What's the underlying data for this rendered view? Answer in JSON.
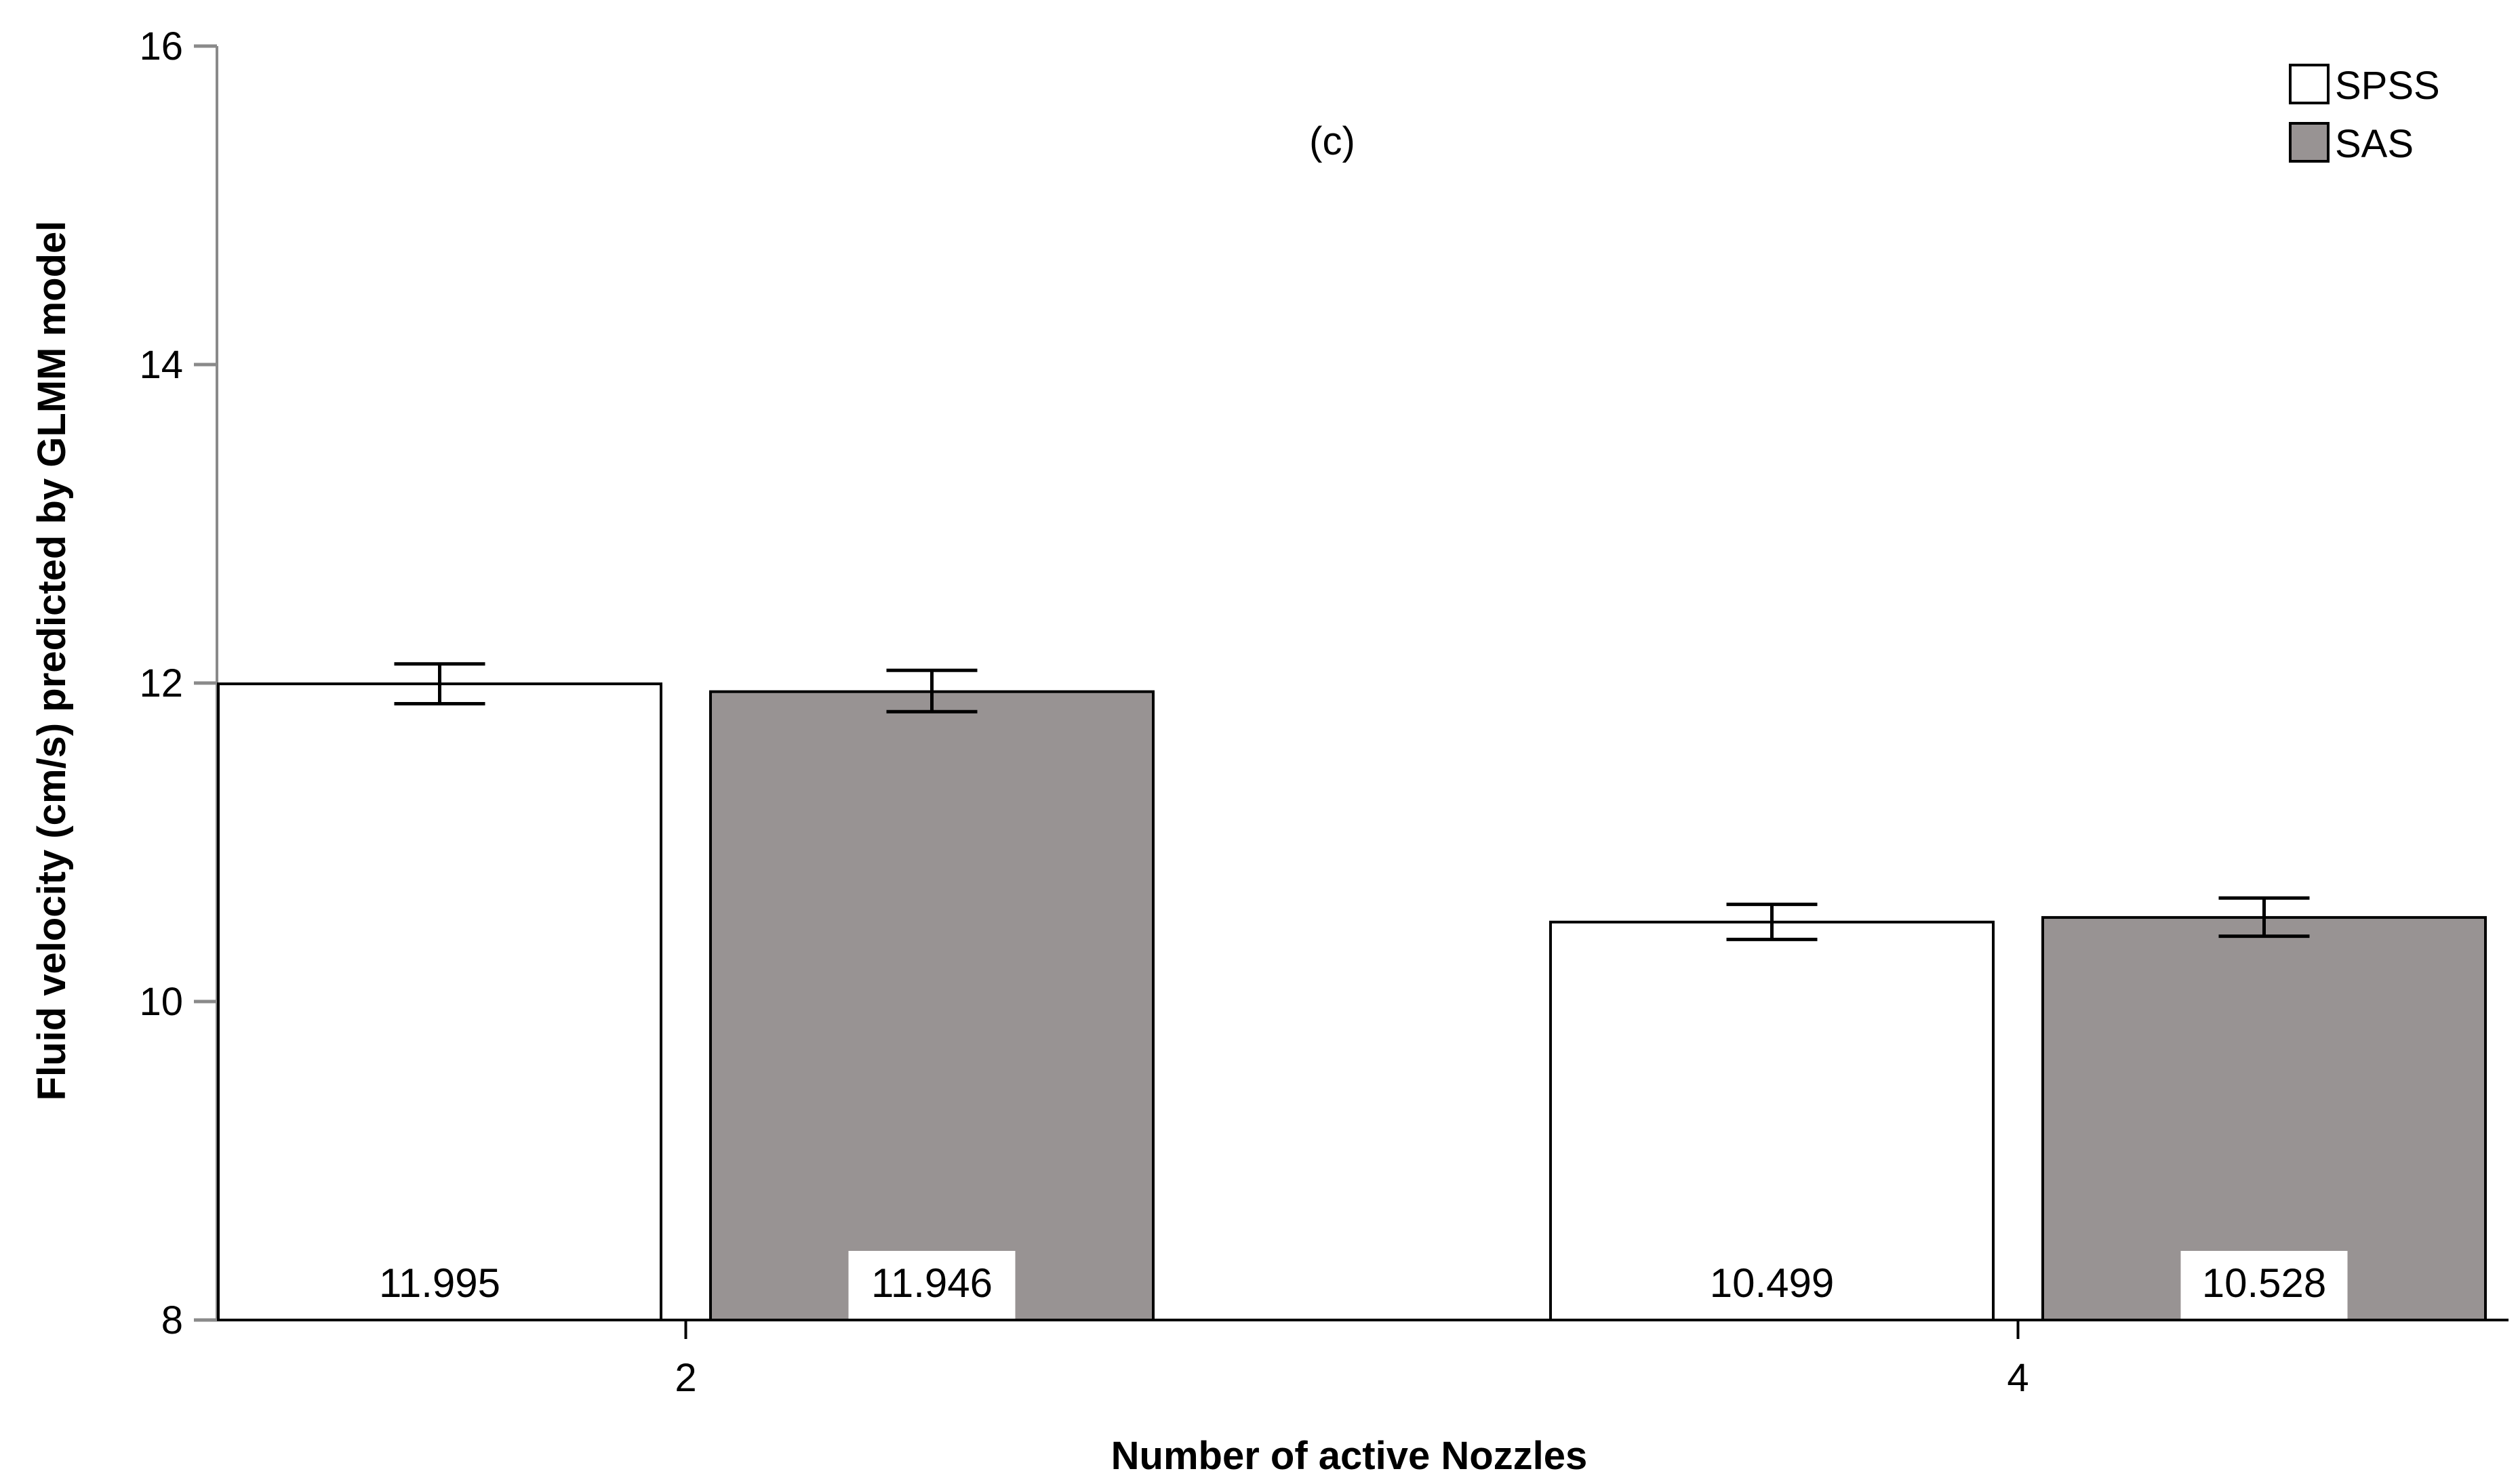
{
  "chart_data": {
    "type": "bar",
    "title": "",
    "annotation": "(c)",
    "xlabel": "Number of active Nozzles",
    "ylabel": "Fluid velocity (cm/s) predicted by GLMM model",
    "categories": [
      "2",
      "4"
    ],
    "ylim": [
      8,
      16
    ],
    "yticks": [
      8,
      10,
      12,
      14,
      16
    ],
    "legend_position": "top-right",
    "grid": false,
    "series": [
      {
        "name": "SPSS",
        "color": "#ffffff",
        "values": [
          11.995,
          10.499
        ],
        "labels": [
          "11.995",
          "10.499"
        ],
        "error_low": [
          11.87,
          10.39
        ],
        "error_high": [
          12.12,
          10.61
        ]
      },
      {
        "name": "SAS",
        "color": "#989393",
        "values": [
          11.946,
          10.528
        ],
        "labels": [
          "11.946",
          "10.528"
        ],
        "error_low": [
          11.82,
          10.41
        ],
        "error_high": [
          12.08,
          10.65
        ]
      }
    ]
  }
}
